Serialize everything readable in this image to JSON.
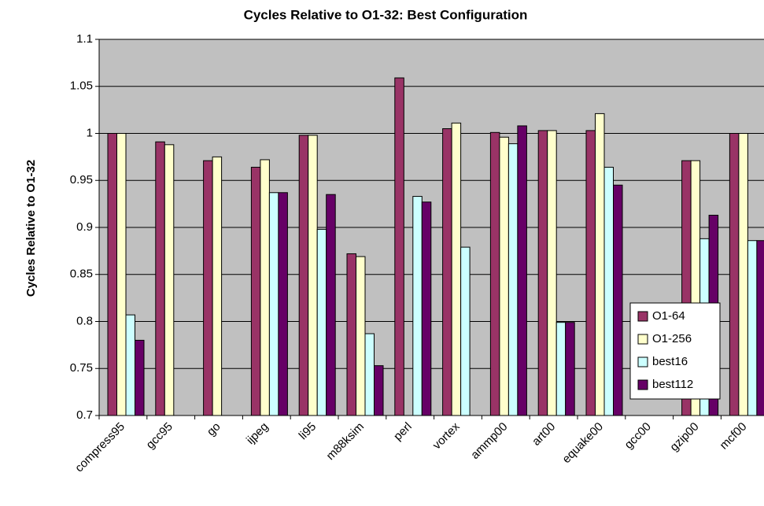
{
  "chart_data": {
    "type": "bar",
    "title": "Cycles Relative to O1-32: Best Configuration",
    "y_label": "Cycles Relative to O1-32",
    "categories": [
      "compress95",
      "gcc95",
      "go",
      "ijpeg",
      "li95",
      "m88ksim",
      "perl",
      "vortex",
      "ammp00",
      "art00",
      "equake00",
      "gcc00",
      "gzip00",
      "mcf00"
    ],
    "series": [
      {
        "name": "O1-64",
        "color": "#993366",
        "values": [
          1.0,
          0.991,
          0.971,
          0.964,
          0.998,
          0.872,
          1.059,
          1.005,
          1.001,
          1.003,
          1.003,
          null,
          0.971,
          1.0
        ]
      },
      {
        "name": "O1-256",
        "color": "#FFFFCC",
        "values": [
          1.0,
          0.988,
          0.975,
          0.972,
          0.998,
          0.869,
          null,
          1.011,
          0.996,
          1.003,
          1.021,
          null,
          0.971,
          1.0
        ]
      },
      {
        "name": "best16",
        "color": "#CCFFFF",
        "values": [
          0.807,
          null,
          null,
          0.937,
          0.898,
          0.787,
          0.933,
          0.879,
          0.989,
          0.799,
          0.964,
          null,
          0.888,
          0.886
        ]
      },
      {
        "name": "best112",
        "color": "#660066",
        "values": [
          0.78,
          null,
          null,
          0.937,
          0.935,
          0.753,
          0.927,
          null,
          1.008,
          0.799,
          0.945,
          null,
          0.913,
          0.886
        ]
      }
    ],
    "ylim": [
      0.7,
      1.1
    ],
    "yticks": [
      0.7,
      0.75,
      0.8,
      0.85,
      0.9,
      0.95,
      1,
      1.05,
      1.1
    ],
    "grid": true,
    "legend": "right"
  }
}
